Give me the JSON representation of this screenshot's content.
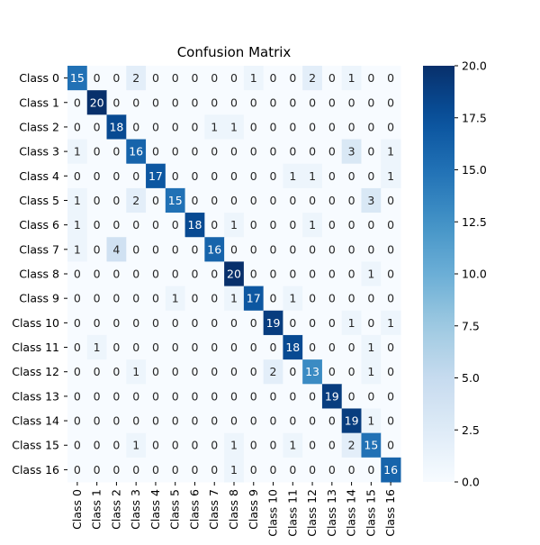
{
  "chart_data": {
    "type": "heatmap",
    "title": "Confusion Matrix",
    "xlabel": "",
    "ylabel": "",
    "row_labels": [
      "Class 0",
      "Class 1",
      "Class 2",
      "Class 3",
      "Class 4",
      "Class 5",
      "Class 6",
      "Class 7",
      "Class 8",
      "Class 9",
      "Class 10",
      "Class 11",
      "Class 12",
      "Class 13",
      "Class 14",
      "Class 15",
      "Class 16"
    ],
    "col_labels": [
      "Class 0",
      "Class 1",
      "Class 2",
      "Class 3",
      "Class 4",
      "Class 5",
      "Class 6",
      "Class 7",
      "Class 8",
      "Class 9",
      "Class 10",
      "Class 11",
      "Class 12",
      "Class 13",
      "Class 14",
      "Class 15",
      "Class 16"
    ],
    "values": [
      [
        15,
        0,
        0,
        2,
        0,
        0,
        0,
        0,
        0,
        1,
        0,
        0,
        2,
        0,
        1,
        0,
        0
      ],
      [
        0,
        20,
        0,
        0,
        0,
        0,
        0,
        0,
        0,
        0,
        0,
        0,
        0,
        0,
        0,
        0,
        0
      ],
      [
        0,
        0,
        18,
        0,
        0,
        0,
        0,
        1,
        1,
        0,
        0,
        0,
        0,
        0,
        0,
        0,
        0
      ],
      [
        1,
        0,
        0,
        16,
        0,
        0,
        0,
        0,
        0,
        0,
        0,
        0,
        0,
        0,
        3,
        0,
        1
      ],
      [
        0,
        0,
        0,
        0,
        17,
        0,
        0,
        0,
        0,
        0,
        0,
        1,
        1,
        0,
        0,
        0,
        1
      ],
      [
        1,
        0,
        0,
        2,
        0,
        15,
        0,
        0,
        0,
        0,
        0,
        0,
        0,
        0,
        0,
        3,
        0
      ],
      [
        1,
        0,
        0,
        0,
        0,
        0,
        18,
        0,
        1,
        0,
        0,
        0,
        1,
        0,
        0,
        0,
        0
      ],
      [
        1,
        0,
        4,
        0,
        0,
        0,
        0,
        16,
        0,
        0,
        0,
        0,
        0,
        0,
        0,
        0,
        0
      ],
      [
        0,
        0,
        0,
        0,
        0,
        0,
        0,
        0,
        20,
        0,
        0,
        0,
        0,
        0,
        0,
        1,
        0
      ],
      [
        0,
        0,
        0,
        0,
        0,
        1,
        0,
        0,
        1,
        17,
        0,
        1,
        0,
        0,
        0,
        0,
        0
      ],
      [
        0,
        0,
        0,
        0,
        0,
        0,
        0,
        0,
        0,
        0,
        19,
        0,
        0,
        0,
        1,
        0,
        1
      ],
      [
        0,
        1,
        0,
        0,
        0,
        0,
        0,
        0,
        0,
        0,
        0,
        18,
        0,
        0,
        0,
        1,
        0
      ],
      [
        0,
        0,
        0,
        1,
        0,
        0,
        0,
        0,
        0,
        0,
        2,
        0,
        13,
        0,
        0,
        1,
        0
      ],
      [
        0,
        0,
        0,
        0,
        0,
        0,
        0,
        0,
        0,
        0,
        0,
        0,
        0,
        19,
        0,
        0,
        0
      ],
      [
        0,
        0,
        0,
        0,
        0,
        0,
        0,
        0,
        0,
        0,
        0,
        0,
        0,
        0,
        19,
        1,
        0
      ],
      [
        0,
        0,
        0,
        1,
        0,
        0,
        0,
        0,
        1,
        0,
        0,
        1,
        0,
        0,
        2,
        15,
        0
      ],
      [
        0,
        0,
        0,
        0,
        0,
        0,
        0,
        0,
        1,
        0,
        0,
        0,
        0,
        0,
        0,
        0,
        16
      ]
    ],
    "colormap": "Blues",
    "vmin": 0,
    "vmax": 20,
    "colorbar_ticks": [
      "0.0",
      "2.5",
      "5.0",
      "7.5",
      "10.0",
      "12.5",
      "15.0",
      "17.5",
      "20.0"
    ],
    "grid": false,
    "legend": "colorbar-right"
  }
}
